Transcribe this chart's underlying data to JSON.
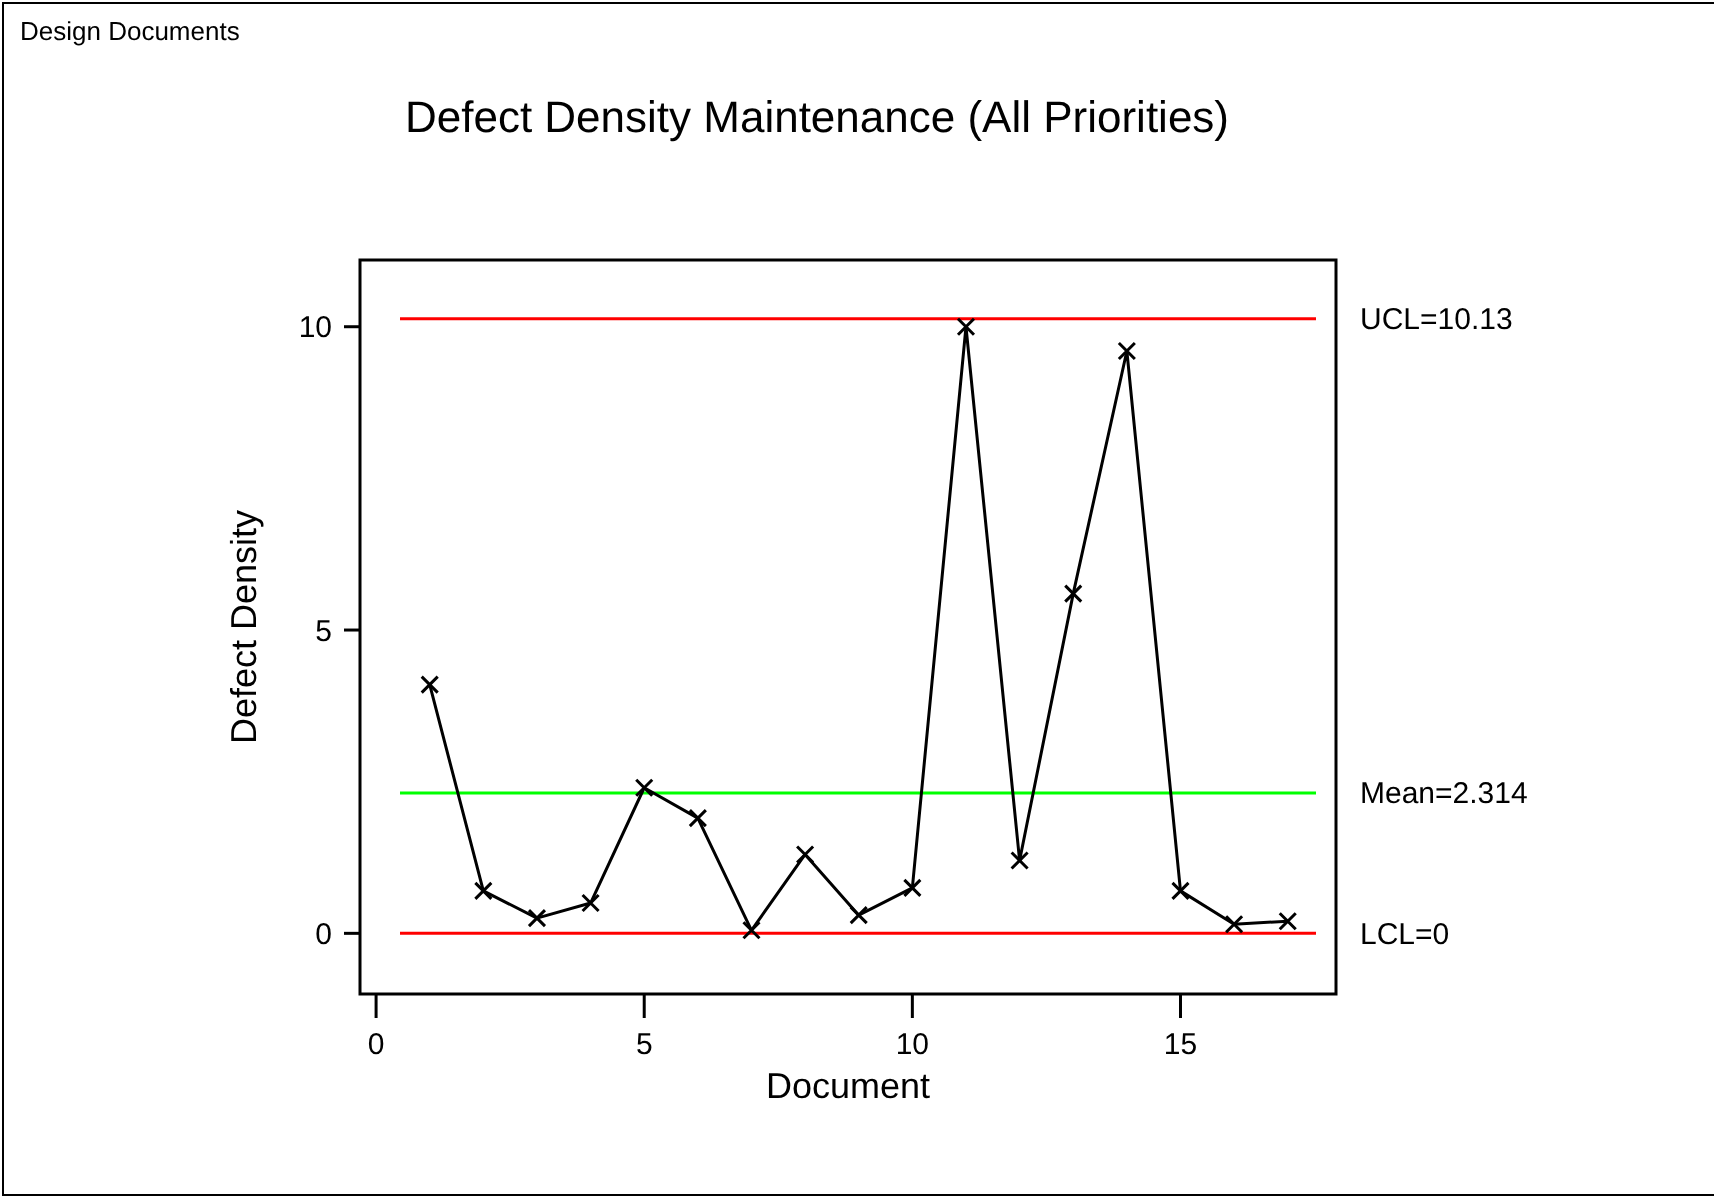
{
  "chart_data": {
    "type": "line",
    "title": "Defect Density Maintenance (All Priorities)",
    "xlabel": "Document",
    "ylabel": "Defect Density",
    "annotations": [
      "Design Documents"
    ],
    "x": [
      1,
      2,
      3,
      4,
      5,
      6,
      7,
      8,
      9,
      10,
      11,
      12,
      13,
      14,
      15,
      16,
      17
    ],
    "series": [
      {
        "color": "#000000",
        "values": [
          4.1,
          0.7,
          0.25,
          0.5,
          2.4,
          1.9,
          0.05,
          1.3,
          0.3,
          0.75,
          10.0,
          1.2,
          5.6,
          9.6,
          0.7,
          0.15,
          0.2
        ]
      }
    ],
    "xlim": [
      -0.3,
      17.9
    ],
    "xticks": [
      0,
      5,
      10,
      15
    ],
    "ylim": [
      -1,
      11.1
    ],
    "yticks": [
      0,
      5,
      10
    ],
    "ref_lines": [
      {
        "axis": "y",
        "value": 10.13,
        "label": "UCL=10.13",
        "color": "#ff0000"
      },
      {
        "axis": "y",
        "value": 2.314,
        "label": "Mean=2.314",
        "color": "#00ff00"
      },
      {
        "axis": "y",
        "value": 0,
        "label": "LCL=0",
        "color": "#ff0000"
      }
    ],
    "marker": "cross",
    "line_style": "solid",
    "grid": false,
    "legend": false
  }
}
